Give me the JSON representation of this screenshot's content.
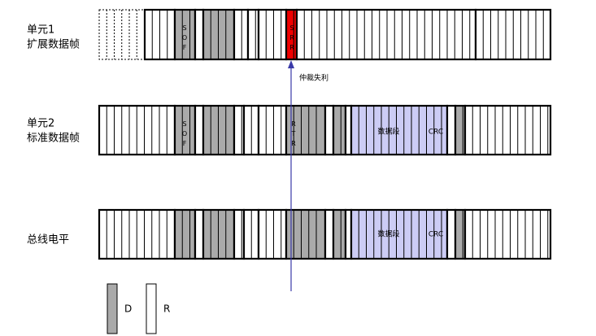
{
  "rows": [
    {
      "label": [
        "单元1",
        "扩展数据帧"
      ],
      "fields": {
        "sof": "SOF",
        "srr": "SRR"
      }
    },
    {
      "label": [
        "单元2",
        "标准数据帧"
      ],
      "fields": {
        "sof": "SOF",
        "rtr": "RTR",
        "data": "数据段",
        "crc": "CRC"
      }
    },
    {
      "label": [
        "总线电平"
      ],
      "fields": {
        "data": "数据段",
        "crc": "CRC"
      }
    }
  ],
  "annotation": "仲裁失利",
  "legend": {
    "dominant": "D",
    "recessive": "R"
  }
}
